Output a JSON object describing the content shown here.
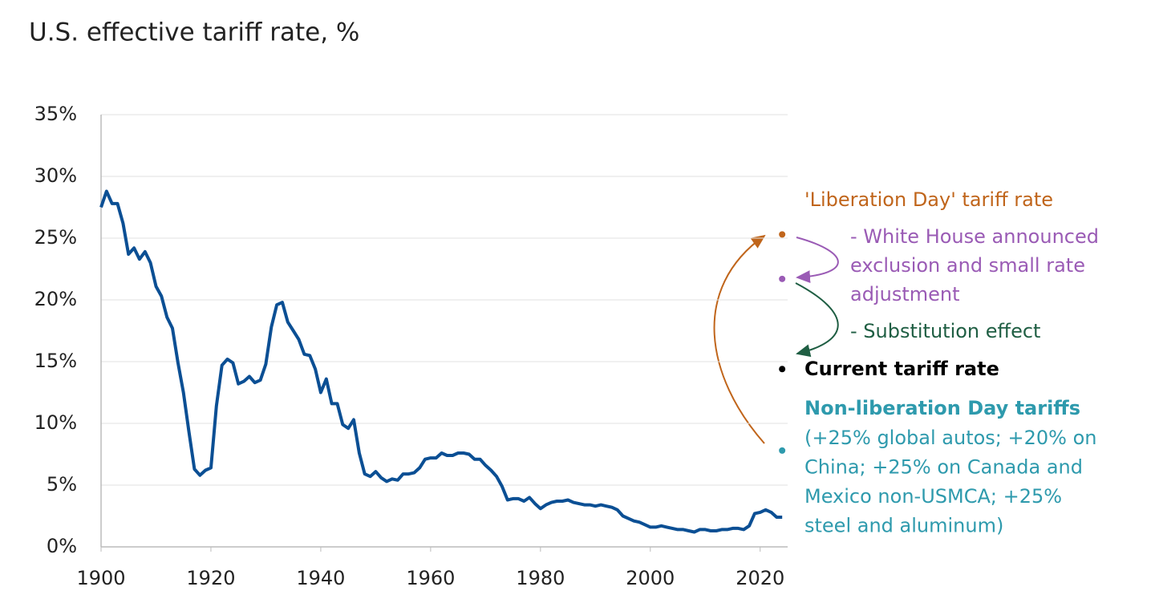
{
  "chart_data": {
    "type": "line",
    "title": "U.S. effective tariff rate, %",
    "x": [
      1900,
      1901,
      1902,
      1903,
      1904,
      1905,
      1906,
      1907,
      1908,
      1909,
      1910,
      1911,
      1912,
      1913,
      1914,
      1915,
      1916,
      1917,
      1918,
      1919,
      1920,
      1921,
      1922,
      1923,
      1924,
      1925,
      1926,
      1927,
      1928,
      1929,
      1930,
      1931,
      1932,
      1933,
      1934,
      1935,
      1936,
      1937,
      1938,
      1939,
      1940,
      1941,
      1942,
      1943,
      1944,
      1945,
      1946,
      1947,
      1948,
      1949,
      1950,
      1951,
      1952,
      1953,
      1954,
      1955,
      1956,
      1957,
      1958,
      1959,
      1960,
      1961,
      1962,
      1963,
      1964,
      1965,
      1966,
      1967,
      1968,
      1969,
      1970,
      1971,
      1972,
      1973,
      1974,
      1975,
      1976,
      1977,
      1978,
      1979,
      1980,
      1981,
      1982,
      1983,
      1984,
      1985,
      1986,
      1987,
      1988,
      1989,
      1990,
      1991,
      1992,
      1993,
      1994,
      1995,
      1996,
      1997,
      1998,
      1999,
      2000,
      2001,
      2002,
      2003,
      2004,
      2005,
      2006,
      2007,
      2008,
      2009,
      2010,
      2011,
      2012,
      2013,
      2014,
      2015,
      2016,
      2017,
      2018,
      2019,
      2020,
      2021,
      2022,
      2023,
      2024
    ],
    "series": [
      {
        "color": "#0b4f94",
        "values": [
          27.5,
          28.8,
          27.8,
          27.8,
          26.2,
          23.7,
          24.2,
          23.3,
          23.9,
          23.0,
          21.1,
          20.3,
          18.6,
          17.7,
          14.9,
          12.5,
          9.3,
          6.3,
          5.8,
          6.2,
          6.4,
          11.4,
          14.7,
          15.2,
          14.9,
          13.2,
          13.4,
          13.8,
          13.3,
          13.5,
          14.8,
          17.8,
          19.6,
          19.8,
          18.2,
          17.5,
          16.8,
          15.6,
          15.5,
          14.4,
          12.5,
          13.6,
          11.6,
          11.6,
          9.9,
          9.6,
          10.3,
          7.6,
          5.9,
          5.7,
          6.1,
          5.6,
          5.3,
          5.5,
          5.4,
          5.9,
          5.9,
          6.0,
          6.4,
          7.1,
          7.2,
          7.2,
          7.6,
          7.4,
          7.4,
          7.6,
          7.6,
          7.5,
          7.1,
          7.1,
          6.6,
          6.2,
          5.7,
          4.9,
          3.8,
          3.9,
          3.9,
          3.7,
          4.0,
          3.5,
          3.1,
          3.4,
          3.6,
          3.7,
          3.7,
          3.8,
          3.6,
          3.5,
          3.4,
          3.4,
          3.3,
          3.4,
          3.3,
          3.2,
          3.0,
          2.5,
          2.3,
          2.1,
          2.0,
          1.8,
          1.6,
          1.6,
          1.7,
          1.6,
          1.5,
          1.4,
          1.4,
          1.3,
          1.2,
          1.4,
          1.4,
          1.3,
          1.3,
          1.4,
          1.4,
          1.5,
          1.5,
          1.4,
          1.7,
          2.7,
          2.8,
          3.0,
          2.8,
          2.4,
          2.4
        ]
      }
    ],
    "xlim": [
      1900,
      2025
    ],
    "xticks": [
      1900,
      1920,
      1940,
      1960,
      1980,
      2000,
      2020
    ],
    "ylim": [
      0,
      35
    ],
    "yticks": [
      {
        "value": 0,
        "label": "0%"
      },
      {
        "value": 5,
        "label": "5%"
      },
      {
        "value": 10,
        "label": "10%"
      },
      {
        "value": 15,
        "label": "15%"
      },
      {
        "value": 20,
        "label": "20%"
      },
      {
        "value": 25,
        "label": "25%"
      },
      {
        "value": 30,
        "label": "30%"
      },
      {
        "value": 35,
        "label": "35%"
      }
    ],
    "grid": true,
    "marker_x": 2024,
    "markers": [
      {
        "value": 25.3,
        "color": "#c0651b",
        "label": "'Liberation Day' tariff rate"
      },
      {
        "value": 21.7,
        "color": "#9a5bb5"
      },
      {
        "value": 14.4,
        "color": "#000000",
        "label": "Current tariff rate"
      },
      {
        "value": 7.8,
        "color": "#2e9aad",
        "label": "Non-liberation Day tariffs",
        "detail": [
          "(+25% global autos; +20% on",
          "China; +25% on Canada and",
          "Mexico non-USMCA; +25%",
          "steel and aluminum)"
        ]
      }
    ],
    "arrow_notes": [
      {
        "color": "#9a5bb5",
        "lines": [
          "- White House announced",
          "exclusion and small rate",
          "adjustment"
        ]
      },
      {
        "color": "#1f5e43",
        "lines": [
          "- Substitution effect"
        ]
      }
    ]
  }
}
